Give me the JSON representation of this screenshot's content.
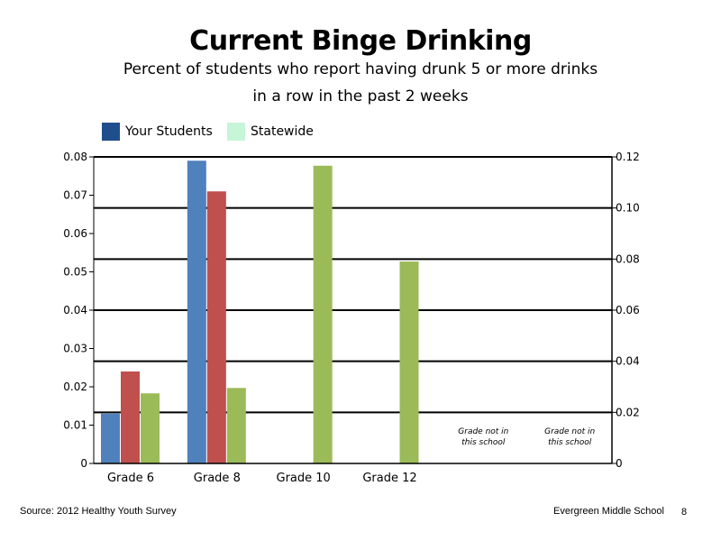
{
  "title": "Current Binge Drinking",
  "subtitle_line1": "Percent of students who report having drunk 5 or more drinks",
  "subtitle_line2": "in a row in the past 2 weeks",
  "legend": [
    {
      "label": "Your Students",
      "color": "#1F4E8C"
    },
    {
      "label": "Statewide",
      "color": "#C6F5D8"
    }
  ],
  "footer": {
    "source": "Source: 2012 Healthy Youth Survey",
    "school": "Evergreen Middle School",
    "page_number": "8"
  },
  "chart_data": {
    "type": "bar",
    "categories": [
      "Grade 6",
      "Grade 8",
      "Grade 10",
      "Grade 12",
      "",
      ""
    ],
    "category_notes": [
      "",
      "",
      "",
      "",
      "Grade not in this school",
      "Grade not in this school"
    ],
    "series": [
      {
        "color": "#4F81BD",
        "values": [
          0.013,
          0.079,
          null,
          null,
          null,
          null
        ]
      },
      {
        "color": "#C0504D",
        "values": [
          0.024,
          0.071,
          null,
          null,
          null,
          null
        ]
      },
      {
        "color": "#9BBB59",
        "values": [
          0.0183,
          0.0197,
          0.0777,
          0.0527,
          null,
          null
        ]
      }
    ],
    "y_left": {
      "min": 0,
      "max": 0.08,
      "ticks": [
        "0",
        "0.01",
        "0.02",
        "0.03",
        "0.04",
        "0.05",
        "0.06",
        "0.07",
        "0.08"
      ]
    },
    "y_right": {
      "min": 0,
      "max": 0.12,
      "ticks": [
        "0",
        "0.02",
        "0.04",
        "0.06",
        "0.08",
        "0.10",
        "0.12"
      ]
    },
    "gridlines": true,
    "legend_position": "top-left"
  }
}
